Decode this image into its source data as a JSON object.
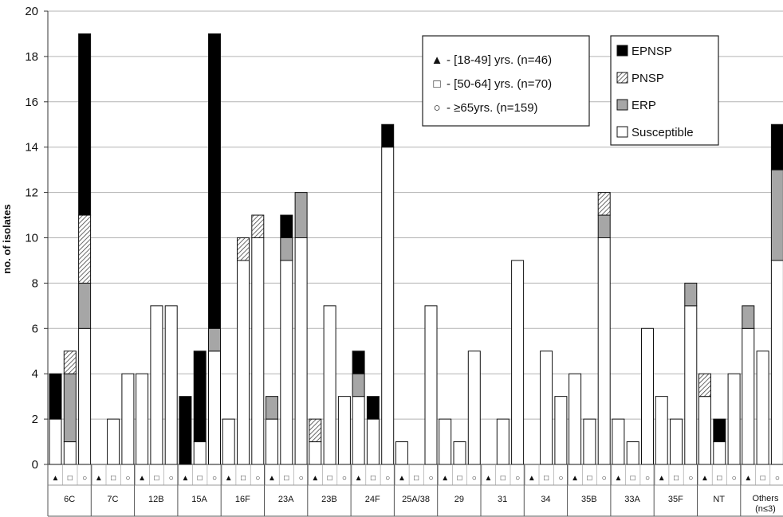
{
  "chart_data": {
    "type": "bar",
    "stacked": true,
    "grouped": true,
    "ylabel": "no. of isolates",
    "ylim": [
      0,
      20
    ],
    "y_ticks": [
      "0",
      "2",
      "4",
      "6",
      "8",
      "10",
      "12",
      "14",
      "16",
      "18",
      "20"
    ],
    "grid": true,
    "age_groups": [
      {
        "key": "a18",
        "marker": "▲",
        "text": " - [18-49] yrs. (n=46)"
      },
      {
        "key": "a50",
        "marker": "□",
        "text": " - [50-64] yrs. (n=70)"
      },
      {
        "key": "a65",
        "marker": "○",
        "text": " - ≥65yrs. (n=159)"
      }
    ],
    "legend_age_position": "top-center",
    "legend_resistance_position": "top-right",
    "resistance_categories": [
      {
        "key": "Susceptible",
        "name": "Susceptible",
        "color": "#ffffff"
      },
      {
        "key": "ERP",
        "name": "ERP",
        "color": "#a6a6a6"
      },
      {
        "key": "PNSP",
        "name": "PNSP",
        "color": "hatch"
      },
      {
        "key": "EPNSP",
        "name": "EPNSP",
        "color": "#000000"
      }
    ],
    "groups": [
      {
        "label": "6C",
        "bars": [
          [
            2,
            0,
            0,
            2
          ],
          [
            1,
            3,
            1,
            0
          ],
          [
            6,
            2,
            3,
            8
          ]
        ]
      },
      {
        "label": "7C",
        "bars": [
          [
            0,
            0,
            0,
            0
          ],
          [
            2,
            0,
            0,
            0
          ],
          [
            4,
            0,
            0,
            0
          ]
        ]
      },
      {
        "label": "12B",
        "bars": [
          [
            4,
            0,
            0,
            0
          ],
          [
            7,
            0,
            0,
            0
          ],
          [
            7,
            0,
            0,
            0
          ]
        ]
      },
      {
        "label": "15A",
        "bars": [
          [
            0,
            0,
            0,
            3
          ],
          [
            1,
            0,
            0,
            4
          ],
          [
            5,
            1,
            0,
            13
          ]
        ]
      },
      {
        "label": "16F",
        "bars": [
          [
            2,
            0,
            0,
            0
          ],
          [
            9,
            0,
            1,
            0
          ],
          [
            10,
            0,
            1,
            0
          ]
        ]
      },
      {
        "label": "23A",
        "bars": [
          [
            2,
            1,
            0,
            0
          ],
          [
            9,
            1,
            0,
            1
          ],
          [
            10,
            2,
            0,
            0
          ]
        ]
      },
      {
        "label": "23B",
        "bars": [
          [
            1,
            0,
            1,
            0
          ],
          [
            7,
            0,
            0,
            0
          ],
          [
            3,
            0,
            0,
            0
          ]
        ]
      },
      {
        "label": "24F",
        "bars": [
          [
            3,
            1,
            0,
            1
          ],
          [
            2,
            0,
            0,
            1
          ],
          [
            14,
            0,
            0,
            1
          ]
        ]
      },
      {
        "label": "25A/38",
        "bars": [
          [
            1,
            0,
            0,
            0
          ],
          [
            0,
            0,
            0,
            0
          ],
          [
            7,
            0,
            0,
            0
          ]
        ]
      },
      {
        "label": "29",
        "bars": [
          [
            2,
            0,
            0,
            0
          ],
          [
            1,
            0,
            0,
            0
          ],
          [
            5,
            0,
            0,
            0
          ]
        ]
      },
      {
        "label": "31",
        "bars": [
          [
            0,
            0,
            0,
            0
          ],
          [
            2,
            0,
            0,
            0
          ],
          [
            9,
            0,
            0,
            0
          ]
        ]
      },
      {
        "label": "34",
        "bars": [
          [
            0,
            0,
            0,
            0
          ],
          [
            5,
            0,
            0,
            0
          ],
          [
            3,
            0,
            0,
            0
          ]
        ]
      },
      {
        "label": "35B",
        "bars": [
          [
            4,
            0,
            0,
            0
          ],
          [
            2,
            0,
            0,
            0
          ],
          [
            10,
            1,
            1,
            0
          ]
        ]
      },
      {
        "label": "33A",
        "bars": [
          [
            2,
            0,
            0,
            0
          ],
          [
            1,
            0,
            0,
            0
          ],
          [
            6,
            0,
            0,
            0
          ]
        ]
      },
      {
        "label": "35F",
        "bars": [
          [
            3,
            0,
            0,
            0
          ],
          [
            2,
            0,
            0,
            0
          ],
          [
            7,
            1,
            0,
            0
          ]
        ]
      },
      {
        "label": "NT",
        "bars": [
          [
            3,
            0,
            1,
            0
          ],
          [
            1,
            0,
            0,
            1
          ],
          [
            4,
            0,
            0,
            0
          ]
        ]
      },
      {
        "label": "Others",
        "sublabel": "(n≤3)",
        "bars": [
          [
            6,
            1,
            0,
            0
          ],
          [
            5,
            0,
            0,
            0
          ],
          [
            9,
            4,
            0,
            2
          ]
        ]
      }
    ]
  }
}
